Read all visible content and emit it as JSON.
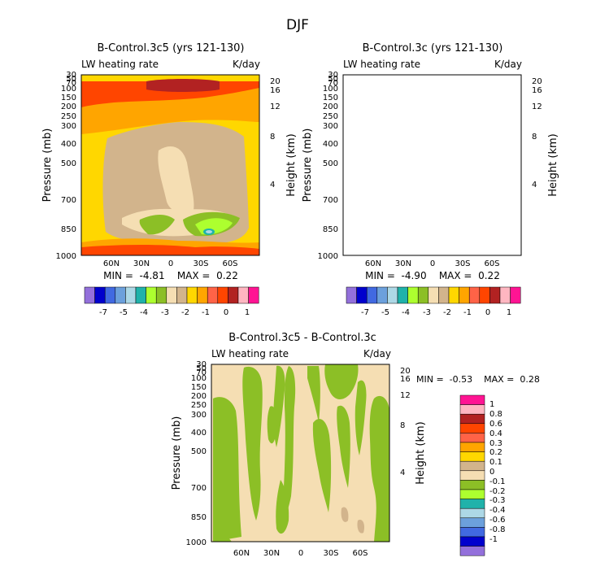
{
  "figure_title": "DJF",
  "chart_data": [
    {
      "type": "heatmap",
      "title": "B-Control.3c5 (yrs 121-130)",
      "subtitle_left": "LW heating rate",
      "subtitle_right": "K/day",
      "ylabel": "Pressure (mb)",
      "ylabel_right": "Height (km)",
      "x_ticks": [
        "60N",
        "30N",
        "0",
        "30S",
        "60S"
      ],
      "y_ticks": [
        "30",
        "50",
        "70",
        "100",
        "150",
        "200",
        "250",
        "300",
        "400",
        "500",
        "700",
        "850",
        "1000"
      ],
      "y_right_ticks": [
        "20",
        "16",
        "12",
        "8",
        "4"
      ],
      "stats": "MIN =  -4.81    MAX =  0.22",
      "colorbar_labels": [
        "-7",
        "-5",
        "-4",
        "-3",
        "-2",
        "-1",
        "0",
        "1"
      ]
    },
    {
      "type": "heatmap",
      "title": "B-Control.3c (yrs 121-130)",
      "subtitle_left": "LW heating rate",
      "subtitle_right": "K/day",
      "ylabel": "Pressure (mb)",
      "ylabel_right": "Height (km)",
      "x_ticks": [
        "60N",
        "30N",
        "0",
        "30S",
        "60S"
      ],
      "y_ticks": [
        "30",
        "50",
        "70",
        "100",
        "150",
        "200",
        "250",
        "300",
        "400",
        "500",
        "700",
        "850",
        "1000"
      ],
      "y_right_ticks": [
        "20",
        "16",
        "12",
        "8",
        "4"
      ],
      "stats": "MIN =  -4.90    MAX =  0.22",
      "colorbar_labels": [
        "-7",
        "-5",
        "-4",
        "-3",
        "-2",
        "-1",
        "0",
        "1"
      ]
    },
    {
      "type": "heatmap",
      "title": "B-Control.3c5 - B-Control.3c",
      "subtitle_left": "LW heating rate",
      "subtitle_right": "K/day",
      "ylabel": "Pressure (mb)",
      "ylabel_right": "Height (km)",
      "x_ticks": [
        "60N",
        "30N",
        "0",
        "30S",
        "60S"
      ],
      "y_ticks": [
        "30",
        "50",
        "70",
        "100",
        "150",
        "200",
        "250",
        "300",
        "400",
        "500",
        "700",
        "850",
        "1000"
      ],
      "y_right_ticks": [
        "20",
        "16",
        "12",
        "8",
        "4"
      ],
      "stats": "MIN =  -0.53    MAX =  0.28",
      "colorbar_labels": [
        "1",
        "0.8",
        "0.6",
        "0.4",
        "0.3",
        "0.2",
        "0.1",
        "0",
        "-0.1",
        "-0.2",
        "-0.3",
        "-0.4",
        "-0.6",
        "-0.8",
        "-1"
      ]
    }
  ],
  "palette": [
    "#9370db",
    "#0000cd",
    "#4169e1",
    "#6ca0dc",
    "#add8e6",
    "#20b2aa",
    "#adff2f",
    "#8cbf26",
    "#f5deb3",
    "#d2b48c",
    "#ffd700",
    "#ffa500",
    "#ff6347",
    "#ff4500",
    "#b22222",
    "#ffb6c1",
    "#ff1493"
  ]
}
